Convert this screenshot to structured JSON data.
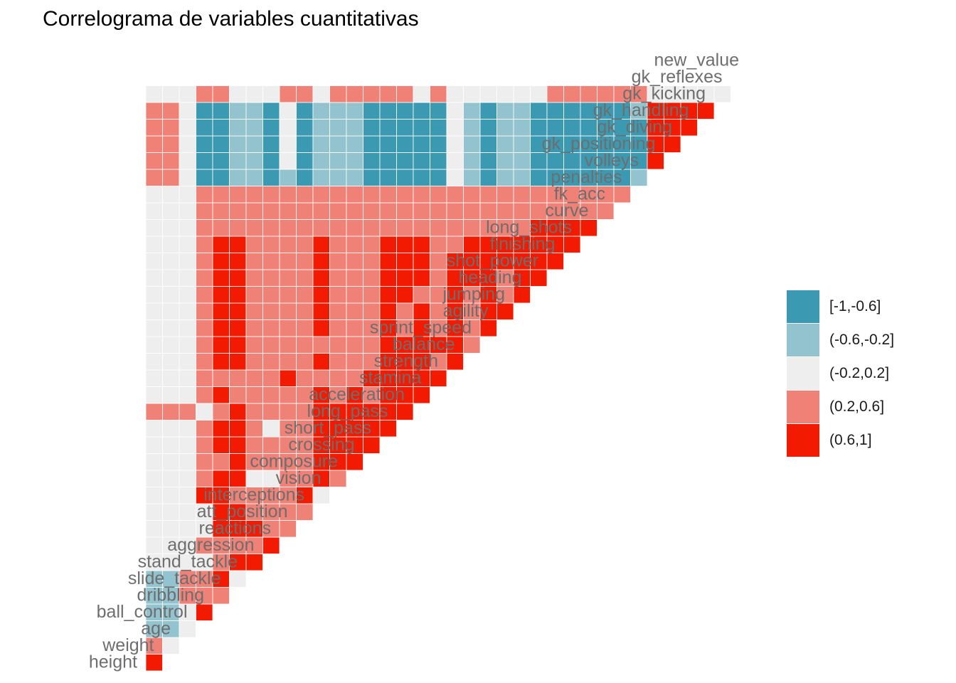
{
  "chart_data": {
    "type": "heatmap",
    "title": "Correlograma de variables cuantitativas",
    "variables": [
      "height",
      "weight",
      "age",
      "ball_control",
      "dribbling",
      "slide_tackle",
      "stand_tackle",
      "aggression",
      "reactions",
      "att_position",
      "interceptions",
      "vision",
      "composure",
      "crossing",
      "short_pass",
      "long_pass",
      "acceleration",
      "stamina",
      "strength",
      "balance",
      "sprint_speed",
      "agility",
      "jumping",
      "heading",
      "shot_power",
      "finishing",
      "long_shots",
      "curve",
      "fk_acc",
      "penalties",
      "volleys",
      "gk_positioning",
      "gk_diving",
      "gk_handling",
      "gk_kicking",
      "gk_reflexes",
      "new_value"
    ],
    "legend": {
      "position": "right",
      "bins": [
        {
          "label": "[-1,-0.6]",
          "color": "#3b9ab2"
        },
        {
          "label": "(-0.6,-0.2]",
          "color": "#93c3ce"
        },
        {
          "label": "(-0.2,0.2]",
          "color": "#eeeeee"
        },
        {
          "label": "(0.2,0.6]",
          "color": "#f08177"
        },
        {
          "label": "(0.6,1]",
          "color": "#f21a00"
        }
      ]
    },
    "cell_bins_note": "Lower-triangle correlation matrix. Row i lists the bin index (0=[-1,-0.6] ... 4=(0.6,1]) of the correlation between variable i+1 and variables 0..i.",
    "rows": [
      [
        4
      ],
      [
        3,
        2
      ],
      [
        1,
        1,
        2
      ],
      [
        1,
        1,
        2,
        4
      ],
      [
        1,
        1,
        3,
        3,
        3
      ],
      [
        1,
        1,
        3,
        3,
        4,
        2
      ],
      [
        2,
        2,
        2,
        2,
        3,
        4,
        4
      ],
      [
        2,
        2,
        2,
        3,
        3,
        3,
        3,
        4
      ],
      [
        2,
        2,
        2,
        2,
        4,
        4,
        4,
        3,
        3
      ],
      [
        2,
        2,
        2,
        2,
        4,
        4,
        3,
        3,
        3,
        3
      ],
      [
        2,
        2,
        2,
        4,
        4,
        3,
        3,
        3,
        3,
        4,
        2
      ],
      [
        2,
        2,
        2,
        3,
        4,
        4,
        2,
        2,
        3,
        3,
        4,
        3
      ],
      [
        2,
        2,
        2,
        3,
        3,
        4,
        3,
        3,
        3,
        3,
        4,
        4,
        4
      ],
      [
        2,
        2,
        2,
        3,
        4,
        4,
        3,
        3,
        3,
        3,
        4,
        4,
        4,
        4
      ],
      [
        2,
        2,
        2,
        3,
        4,
        4,
        3,
        2,
        3,
        3,
        4,
        4,
        4,
        4,
        4
      ],
      [
        3,
        3,
        3,
        2,
        3,
        4,
        3,
        3,
        3,
        3,
        4,
        4,
        4,
        4,
        4,
        4
      ],
      [
        2,
        2,
        2,
        3,
        4,
        3,
        3,
        3,
        3,
        3,
        4,
        3,
        4,
        3,
        4,
        4,
        4
      ],
      [
        2,
        2,
        2,
        3,
        3,
        3,
        3,
        3,
        4,
        3,
        3,
        3,
        3,
        4,
        4,
        4,
        4,
        4
      ],
      [
        2,
        2,
        2,
        3,
        4,
        4,
        3,
        3,
        3,
        3,
        4,
        3,
        3,
        3,
        4,
        4,
        4,
        3,
        4
      ],
      [
        2,
        2,
        2,
        3,
        4,
        4,
        3,
        3,
        3,
        3,
        3,
        3,
        3,
        3,
        4,
        4,
        4,
        4,
        4,
        3
      ],
      [
        2,
        2,
        2,
        3,
        4,
        4,
        3,
        3,
        3,
        3,
        4,
        3,
        3,
        3,
        4,
        3,
        4,
        3,
        4,
        3,
        4
      ],
      [
        2,
        2,
        2,
        3,
        4,
        4,
        3,
        3,
        3,
        3,
        4,
        3,
        3,
        3,
        4,
        3,
        4,
        3,
        4,
        3,
        4,
        4
      ],
      [
        2,
        2,
        2,
        3,
        4,
        4,
        3,
        3,
        3,
        3,
        4,
        3,
        3,
        3,
        4,
        4,
        3,
        3,
        4,
        3,
        4,
        3,
        4
      ],
      [
        2,
        2,
        2,
        3,
        4,
        4,
        3,
        3,
        3,
        3,
        4,
        3,
        3,
        3,
        4,
        4,
        4,
        3,
        4,
        4,
        4,
        3,
        4,
        4
      ],
      [
        2,
        2,
        2,
        3,
        4,
        4,
        3,
        3,
        3,
        3,
        4,
        3,
        3,
        3,
        4,
        4,
        4,
        3,
        4,
        4,
        4,
        4,
        4,
        4,
        4
      ],
      [
        2,
        2,
        2,
        3,
        4,
        4,
        3,
        3,
        3,
        3,
        4,
        3,
        3,
        3,
        4,
        4,
        4,
        3,
        3,
        4,
        4,
        4,
        4,
        4,
        4,
        4
      ],
      [
        2,
        2,
        2,
        3,
        3,
        3,
        3,
        3,
        3,
        3,
        3,
        3,
        3,
        3,
        3,
        3,
        3,
        3,
        3,
        3,
        3,
        3,
        3,
        4,
        4,
        4,
        4
      ],
      [
        2,
        2,
        2,
        3,
        3,
        3,
        3,
        3,
        3,
        3,
        3,
        3,
        3,
        3,
        3,
        3,
        3,
        3,
        3,
        3,
        3,
        3,
        3,
        3,
        3,
        3,
        3,
        3
      ],
      [
        2,
        2,
        2,
        3,
        3,
        3,
        3,
        3,
        3,
        3,
        3,
        3,
        3,
        3,
        3,
        3,
        3,
        3,
        3,
        3,
        3,
        3,
        3,
        3,
        3,
        3,
        3,
        3,
        3
      ],
      [
        3,
        3,
        2,
        0,
        0,
        1,
        1,
        0,
        1,
        0,
        1,
        1,
        1,
        0,
        0,
        0,
        0,
        0,
        2,
        1,
        0,
        1,
        1,
        0,
        0,
        0,
        0,
        0,
        0,
        1
      ],
      [
        3,
        3,
        2,
        0,
        0,
        1,
        1,
        0,
        2,
        0,
        1,
        1,
        1,
        0,
        0,
        0,
        0,
        0,
        2,
        1,
        0,
        1,
        1,
        0,
        0,
        0,
        0,
        0,
        0,
        0,
        4
      ],
      [
        3,
        3,
        2,
        0,
        0,
        1,
        1,
        0,
        2,
        0,
        1,
        1,
        1,
        0,
        0,
        0,
        0,
        0,
        2,
        1,
        0,
        1,
        1,
        0,
        0,
        0,
        0,
        0,
        0,
        0,
        4,
        4
      ],
      [
        3,
        3,
        2,
        0,
        0,
        1,
        1,
        0,
        2,
        0,
        1,
        1,
        1,
        0,
        0,
        0,
        0,
        0,
        2,
        1,
        0,
        1,
        1,
        0,
        0,
        0,
        0,
        0,
        0,
        0,
        4,
        4,
        4
      ],
      [
        3,
        3,
        2,
        0,
        0,
        1,
        1,
        0,
        2,
        0,
        1,
        1,
        1,
        0,
        0,
        0,
        0,
        0,
        2,
        1,
        0,
        1,
        1,
        0,
        0,
        0,
        0,
        0,
        0,
        1,
        4,
        4,
        4,
        4
      ],
      [
        2,
        2,
        2,
        3,
        3,
        2,
        2,
        2,
        3,
        3,
        2,
        3,
        3,
        3,
        3,
        3,
        2,
        3,
        2,
        2,
        2,
        2,
        2,
        2,
        3,
        3,
        3,
        3,
        3,
        3,
        2,
        2,
        2,
        2,
        2
      ]
    ]
  }
}
